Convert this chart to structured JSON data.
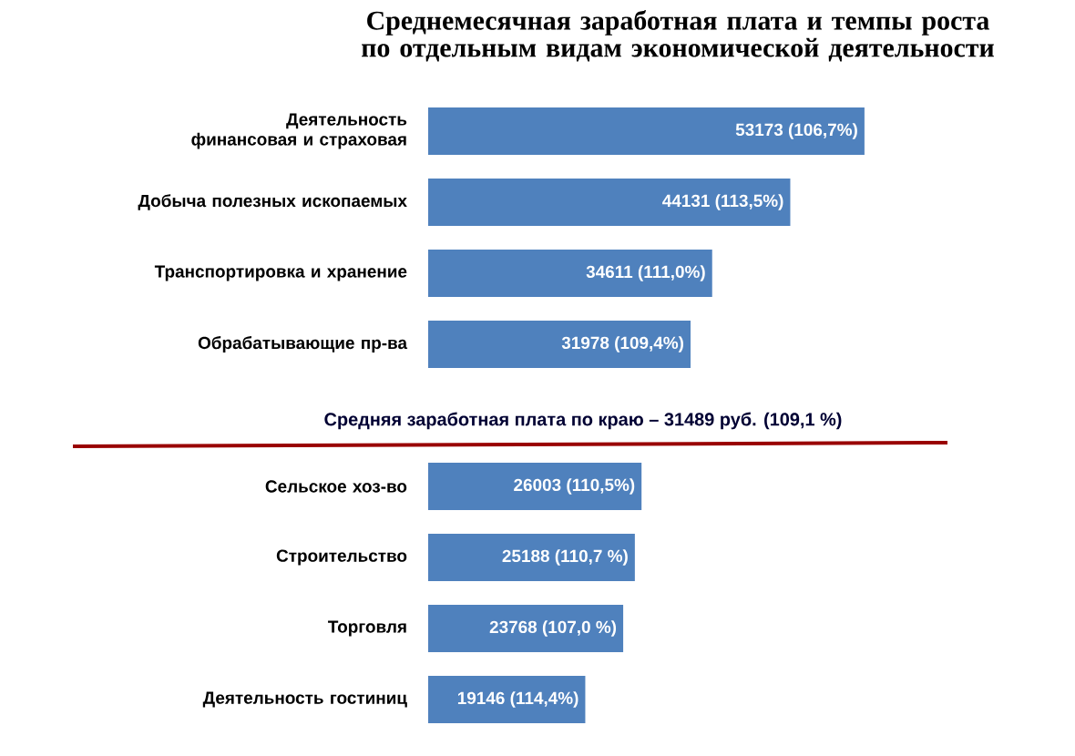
{
  "chart_data": {
    "type": "bar",
    "orientation": "horizontal",
    "title": "Среднемесячная заработная плата и темпы роста  по отдельным видам экономической деятельности",
    "categories": [
      "Деятельность финансовая и страховая",
      "Добыча полезных ископаемых",
      "Транспортировка и хранение",
      "Обрабатывающие пр-ва",
      "Сельское хоз-во",
      "Строительство",
      "Торговля",
      "Деятельность гостиниц"
    ],
    "values": [
      53173,
      44131,
      34611,
      31978,
      26003,
      25188,
      23768,
      19146
    ],
    "value_labels": [
      "53173 (106,7%)",
      "44131 (113,5%)",
      "34611 (111,0%)",
      "31978 (109,4%)",
      "26003 (110,5%)",
      "25188 (110,7 %)",
      "23768 (107,0 %)",
      "19146 (114,4%)"
    ],
    "color": "#4f81bd",
    "annotations": [
      "Средняя  заработная плата по краю – 31489 руб. (109,1 %)"
    ]
  }
}
